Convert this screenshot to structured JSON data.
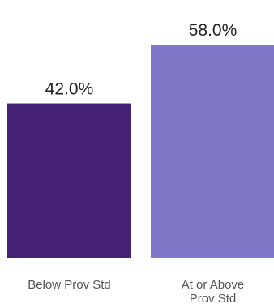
{
  "chart_data": {
    "type": "bar",
    "categories": [
      "Below Prov Std",
      "At or Above Prov Std"
    ],
    "category_lines": [
      [
        "Below Prov Std"
      ],
      [
        "At or Above",
        "Prov Std"
      ]
    ],
    "values": [
      42.0,
      58.0
    ],
    "value_labels": [
      "42.0%",
      "58.0%"
    ],
    "colors": [
      "#452275",
      "#7f78c8"
    ],
    "ylim": [
      0,
      58.0
    ],
    "title": "",
    "xlabel": "",
    "ylabel": "",
    "grid": false,
    "legend": "none"
  }
}
